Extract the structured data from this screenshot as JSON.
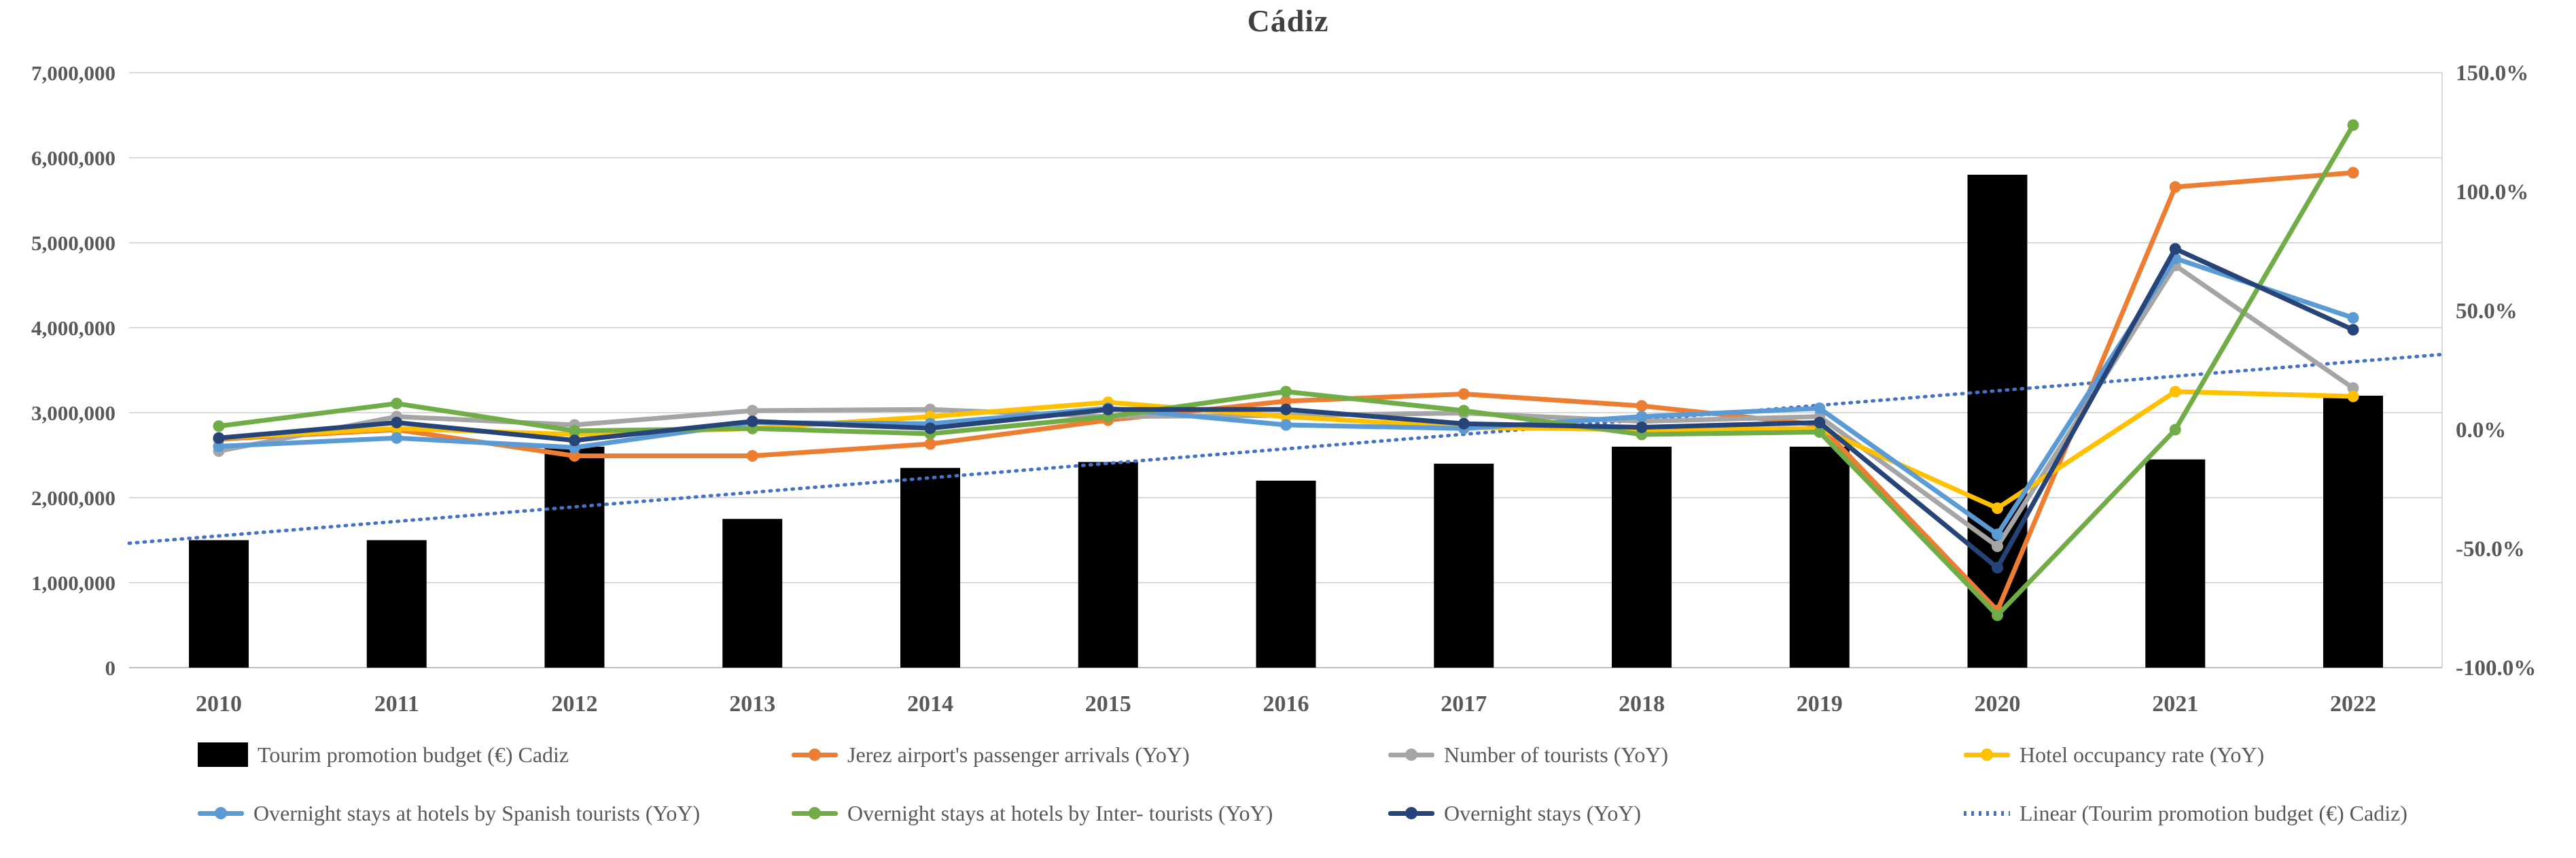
{
  "title": "Cádiz",
  "chart_data": {
    "type": "combo-bar-line",
    "categories": [
      "2010",
      "2011",
      "2012",
      "2013",
      "2014",
      "2015",
      "2016",
      "2017",
      "2018",
      "2019",
      "2020",
      "2021",
      "2022"
    ],
    "bar_series": {
      "name": "Tourim promotion budget (€) Cadiz",
      "color": "#000000",
      "axis": "left",
      "values": [
        1500000,
        1500000,
        2600000,
        1750000,
        2350000,
        2420000,
        2200000,
        2400000,
        2600000,
        2600000,
        5800000,
        2450000,
        3200000
      ]
    },
    "line_series": [
      {
        "name": "Jerez airport's passenger arrivals (YoY)",
        "color": "#ED7D31",
        "axis": "right",
        "values": [
          -0.04,
          0.0,
          -0.11,
          -0.11,
          -0.06,
          0.04,
          0.12,
          0.15,
          0.1,
          0.02,
          -0.76,
          1.02,
          1.08
        ]
      },
      {
        "name": "Number of tourists (YoY)",
        "color": "#A5A5A5",
        "axis": "right",
        "values": [
          -0.09,
          0.055,
          0.02,
          0.08,
          0.085,
          0.055,
          0.06,
          0.07,
          0.035,
          0.055,
          -0.49,
          0.69,
          0.175
        ]
      },
      {
        "name": "Hotel occupancy rate (YoY)",
        "color": "#FFC000",
        "axis": "right",
        "values": [
          -0.035,
          0.005,
          -0.02,
          0.005,
          0.055,
          0.115,
          0.055,
          0.01,
          0.0,
          0.005,
          -0.33,
          0.16,
          0.14
        ]
      },
      {
        "name": "Overnight stays at hotels by Spanish tourists (YoY)",
        "color": "#5B9BD5",
        "axis": "right",
        "values": [
          -0.07,
          -0.035,
          -0.075,
          0.03,
          0.025,
          0.09,
          0.02,
          0.005,
          0.055,
          0.09,
          -0.44,
          0.72,
          0.47
        ]
      },
      {
        "name": "Overnight stays at hotels by Inter- tourists (YoY)",
        "color": "#70AD47",
        "axis": "right",
        "values": [
          0.015,
          0.11,
          -0.005,
          0.005,
          -0.017,
          0.055,
          0.16,
          0.08,
          -0.02,
          -0.01,
          -0.78,
          0.0,
          1.28
        ]
      },
      {
        "name": "Overnight stays (YoY)",
        "color": "#264478",
        "axis": "right",
        "values": [
          -0.035,
          0.03,
          -0.045,
          0.035,
          0.006,
          0.085,
          0.085,
          0.025,
          0.01,
          0.03,
          -0.58,
          0.76,
          0.42
        ]
      }
    ],
    "trendline": {
      "name": "Linear (Tourim promotion budget (€) Cadiz)",
      "color": "#4472C4",
      "style": "dotted",
      "axis": "left",
      "value_at_first_category": 1550000,
      "value_at_last_category": 3600000
    },
    "left_axis": {
      "min": 0,
      "max": 7000000,
      "step": 1000000,
      "tick_labels": [
        "0",
        "1,000,000",
        "2,000,000",
        "3,000,000",
        "4,000,000",
        "5,000,000",
        "6,000,000",
        "7,000,000"
      ]
    },
    "right_axis": {
      "min": -1.0,
      "max": 1.5,
      "step": 0.5,
      "tick_labels": [
        "-100.0%",
        "-50.0%",
        "0.0%",
        "50.0%",
        "100.0%",
        "150.0%"
      ],
      "tick_values": [
        -1.0,
        -0.5,
        0.0,
        0.5,
        1.0,
        1.5
      ]
    },
    "grid": true,
    "legend_position": "bottom"
  },
  "legend": {
    "rows": [
      [
        {
          "label": "Tourim promotion budget (€) Cadiz",
          "marker": "bar",
          "color": "#000000"
        },
        {
          "label": "Jerez airport's passenger arrivals (YoY)",
          "marker": "line",
          "color": "#ED7D31"
        },
        {
          "label": "Number of tourists (YoY)",
          "marker": "line",
          "color": "#A5A5A5"
        },
        {
          "label": "Hotel occupancy rate (YoY)",
          "marker": "line",
          "color": "#FFC000"
        }
      ],
      [
        {
          "label": "Overnight stays at hotels by Spanish tourists (YoY)",
          "marker": "line",
          "color": "#5B9BD5"
        },
        {
          "label": "Overnight stays at hotels by Inter- tourists (YoY)",
          "marker": "line",
          "color": "#70AD47"
        },
        {
          "label": "Overnight stays (YoY)",
          "marker": "line",
          "color": "#264478"
        },
        {
          "label": "Linear (Tourim promotion budget (€) Cadiz)",
          "marker": "dotted",
          "color": "#4472C4"
        }
      ]
    ]
  },
  "colors": {
    "gridline": "#D9D9D9",
    "axis_line": "#BFBFBF",
    "tick_text": "#595959",
    "title_text": "#404040"
  }
}
